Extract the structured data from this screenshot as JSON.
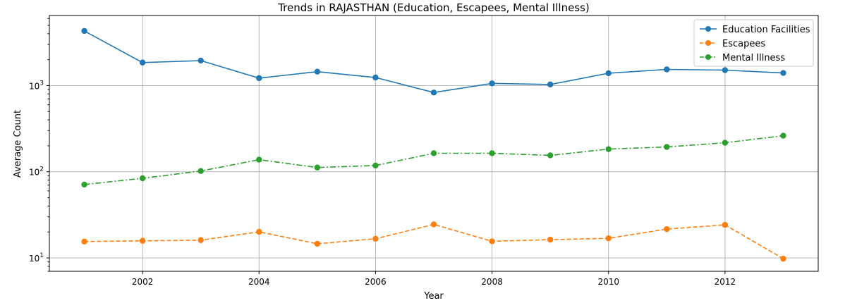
{
  "chart_data": {
    "type": "line",
    "title": "Trends in RAJASTHAN (Education, Escapees, Mental Illness)",
    "xlabel": "Year",
    "ylabel": "Average Count",
    "yscale": "log",
    "xlim": [
      2000.4,
      2013.6
    ],
    "ylim": [
      7,
      6500
    ],
    "grid": true,
    "legend_position": "top-right",
    "x_ticks": [
      2002,
      2004,
      2006,
      2008,
      2010,
      2012
    ],
    "x_tick_labels": [
      "2002",
      "2004",
      "2006",
      "2008",
      "2010",
      "2012"
    ],
    "y_ticks": [
      10,
      100,
      1000
    ],
    "y_tick_bases": [
      "10",
      "10",
      "10"
    ],
    "y_tick_exponents": [
      "1",
      "2",
      "3"
    ],
    "x": [
      2001,
      2002,
      2003,
      2004,
      2005,
      2006,
      2007,
      2008,
      2009,
      2010,
      2011,
      2012,
      2013
    ],
    "series": [
      {
        "name": "Education Facilities",
        "color": "#1f77b4",
        "linestyle": "solid",
        "values": [
          4300,
          1850,
          1950,
          1220,
          1450,
          1240,
          830,
          1060,
          1030,
          1390,
          1540,
          1510,
          1400
        ]
      },
      {
        "name": "Escapees",
        "color": "#ff7f0e",
        "linestyle": "dashed",
        "values": [
          15.5,
          15.8,
          16.1,
          20.1,
          14.6,
          16.7,
          24.5,
          15.6,
          16.3,
          16.9,
          21.6,
          24.2,
          9.8
        ]
      },
      {
        "name": "Mental Illness",
        "color": "#2ca02c",
        "linestyle": "dashdot",
        "values": [
          71,
          84,
          102,
          138,
          112,
          118,
          164,
          164,
          155,
          183,
          194,
          217,
          262
        ]
      }
    ]
  }
}
